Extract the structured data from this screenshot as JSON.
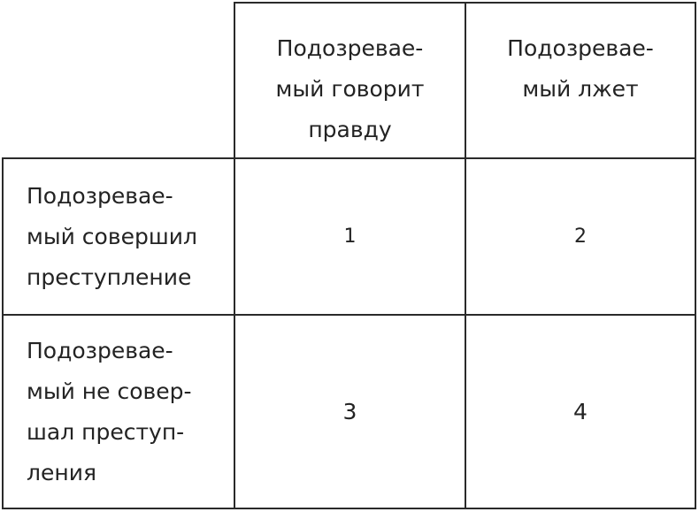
{
  "table": {
    "column_headers": [
      "",
      "Подозревае-\nмый говорит\nправду",
      "Подозревае-\nмый лжет"
    ],
    "rows": [
      {
        "label": "Подозревае-\nмый совершил\nпреступление",
        "cells": [
          "1",
          "2"
        ]
      },
      {
        "label": "Подозревае-\nмый не совер-\nшал преступ-\nления",
        "cells": [
          "3",
          "4"
        ]
      }
    ]
  }
}
